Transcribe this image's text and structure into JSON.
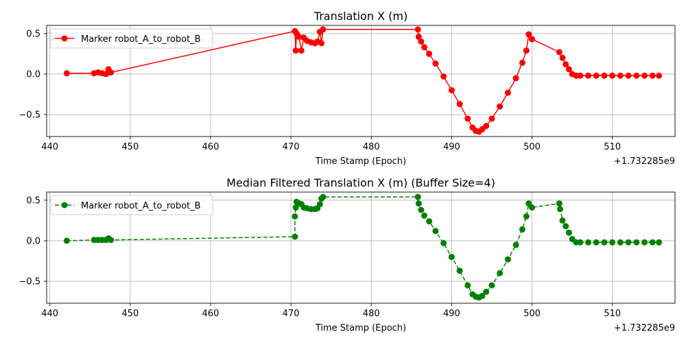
{
  "chart_data": [
    {
      "type": "line",
      "title": "Translation X (m)",
      "xlabel": "Time Stamp (Epoch)",
      "ylabel": "",
      "offset_text": "+1.732285e9",
      "xlim": [
        439.6,
        517.8
      ],
      "ylim": [
        -0.77,
        0.6
      ],
      "xticks": [
        440,
        450,
        460,
        470,
        480,
        490,
        500,
        510
      ],
      "yticks": [
        0.5,
        0.0,
        -0.5
      ],
      "ytick_labels": [
        "0.5",
        "0.0",
        "−0.5"
      ],
      "grid": true,
      "legend_position": "top-left",
      "series": [
        {
          "name": "Marker robot_A_to_robot_B",
          "color": "#ff0000",
          "line_style": "solid",
          "marker": "circle",
          "x": [
            442.1,
            445.5,
            446.0,
            446.5,
            447.0,
            447.3,
            447.6,
            470.5,
            470.6,
            470.7,
            471.0,
            471.3,
            471.6,
            472.0,
            472.5,
            473.0,
            473.3,
            473.6,
            473.8,
            474.0,
            485.8,
            485.9,
            486.2,
            486.6,
            487.2,
            488.0,
            489.0,
            490.0,
            491.0,
            492.0,
            492.6,
            493.0,
            493.4,
            493.8,
            494.3,
            495.0,
            496.0,
            497.0,
            498.0,
            498.8,
            499.3,
            499.6,
            500.0,
            503.4,
            503.8,
            504.2,
            504.6,
            505.0,
            505.5,
            506.0,
            507.0,
            508.0,
            509.0,
            510.0,
            511.0,
            512.0,
            513.0,
            514.0,
            515.0,
            515.8
          ],
          "y": [
            0.01,
            0.01,
            0.02,
            0.01,
            0.0,
            0.06,
            0.02,
            0.53,
            0.29,
            0.5,
            0.46,
            0.29,
            0.45,
            0.41,
            0.39,
            0.38,
            0.4,
            0.52,
            0.38,
            0.55,
            0.55,
            0.46,
            0.4,
            0.33,
            0.25,
            0.13,
            -0.03,
            -0.2,
            -0.37,
            -0.55,
            -0.66,
            -0.7,
            -0.71,
            -0.68,
            -0.64,
            -0.55,
            -0.4,
            -0.23,
            -0.05,
            0.14,
            0.29,
            0.49,
            0.43,
            0.27,
            0.2,
            0.12,
            0.06,
            0.0,
            -0.02,
            -0.02,
            -0.02,
            -0.02,
            -0.02,
            -0.02,
            -0.02,
            -0.02,
            -0.02,
            -0.02,
            -0.02,
            -0.02
          ]
        }
      ]
    },
    {
      "type": "line",
      "title": "Median Filtered Translation X (m) (Buffer Size=4)",
      "xlabel": "Time Stamp (Epoch)",
      "ylabel": "",
      "offset_text": "+1.732285e9",
      "xlim": [
        439.6,
        517.8
      ],
      "ylim": [
        -0.77,
        0.6
      ],
      "xticks": [
        440,
        450,
        460,
        470,
        480,
        490,
        500,
        510
      ],
      "yticks": [
        0.5,
        0.0,
        -0.5
      ],
      "ytick_labels": [
        "0.5",
        "0.0",
        "−0.5"
      ],
      "grid": true,
      "legend_position": "top-left",
      "series": [
        {
          "name": "Marker robot_A_to_robot_B",
          "color": "#008000",
          "line_style": "dashed",
          "marker": "circle",
          "x": [
            442.1,
            445.5,
            446.0,
            446.5,
            447.0,
            447.3,
            447.6,
            470.5,
            470.5,
            470.6,
            470.7,
            471.0,
            471.3,
            471.6,
            472.0,
            472.5,
            473.0,
            473.3,
            473.6,
            473.8,
            474.0,
            485.8,
            485.9,
            486.2,
            486.6,
            487.2,
            488.0,
            489.0,
            490.0,
            491.0,
            492.0,
            492.6,
            493.0,
            493.4,
            493.8,
            494.3,
            495.0,
            496.0,
            497.0,
            498.0,
            498.8,
            499.3,
            499.6,
            500.0,
            503.4,
            503.5,
            503.8,
            504.2,
            504.6,
            505.0,
            505.5,
            506.0,
            507.0,
            508.0,
            509.0,
            510.0,
            511.0,
            512.0,
            513.0,
            514.0,
            515.0,
            515.8
          ],
          "y": [
            0.0,
            0.01,
            0.01,
            0.01,
            0.01,
            0.03,
            0.01,
            0.05,
            0.3,
            0.41,
            0.48,
            0.46,
            0.45,
            0.41,
            0.4,
            0.39,
            0.39,
            0.4,
            0.45,
            0.52,
            0.54,
            0.54,
            0.46,
            0.38,
            0.31,
            0.24,
            0.12,
            -0.03,
            -0.2,
            -0.37,
            -0.55,
            -0.66,
            -0.69,
            -0.7,
            -0.68,
            -0.63,
            -0.55,
            -0.4,
            -0.23,
            -0.05,
            0.14,
            0.3,
            0.46,
            0.41,
            0.46,
            0.39,
            0.25,
            0.18,
            0.1,
            0.02,
            -0.02,
            -0.02,
            -0.02,
            -0.02,
            -0.02,
            -0.02,
            -0.02,
            -0.02,
            -0.02,
            -0.02,
            -0.02,
            -0.02
          ]
        }
      ]
    }
  ]
}
